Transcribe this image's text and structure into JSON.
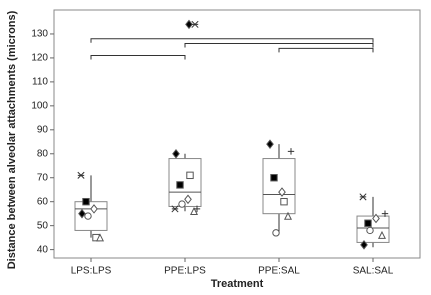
{
  "chart_data": {
    "type": "box",
    "x_label": "Treatment",
    "y_label": "Distance between alveolar attachments (microns)",
    "categories": [
      "LPS:LPS",
      "PPE:LPS",
      "PPE:SAL",
      "SAL:SAL"
    ],
    "ylim": [
      36.5,
      140
    ],
    "yticks": [
      40,
      50,
      60,
      70,
      80,
      90,
      100,
      110,
      120,
      130
    ],
    "boxes": [
      {
        "low": 45,
        "q1": 48,
        "median": 57,
        "q3": 60,
        "high": 71
      },
      {
        "low": 56,
        "q1": 58,
        "median": 64,
        "q3": 78,
        "high": 80
      },
      {
        "low": 47,
        "q1": 55,
        "median": 63,
        "q3": 78,
        "high": 84
      },
      {
        "low": 41,
        "q1": 43,
        "median": 49,
        "q3": 54,
        "high": 62
      }
    ],
    "color": "#888888",
    "points": [
      {
        "marker": "asterisk",
        "values": [
          71,
          57,
          null,
          62
        ]
      },
      {
        "marker": "filled-square",
        "values": [
          60,
          67,
          70,
          51
        ]
      },
      {
        "marker": "filled-diamond",
        "values": [
          55,
          80,
          84,
          42
        ]
      },
      {
        "marker": "open-circle",
        "values": [
          54,
          59,
          47,
          48
        ]
      },
      {
        "marker": "open-diamond",
        "values": [
          57,
          61,
          64,
          53
        ]
      },
      {
        "marker": "open-square",
        "values": [
          45,
          71,
          60,
          null
        ]
      },
      {
        "marker": "open-triangle",
        "values": [
          45,
          56,
          54,
          46
        ]
      },
      {
        "marker": "plus",
        "values": [
          null,
          57,
          81,
          55
        ]
      }
    ],
    "outliers": [
      null,
      134,
      null,
      null
    ],
    "brackets": [
      {
        "from": 0,
        "to": 3,
        "y": 128
      },
      {
        "from": 1,
        "to": 3,
        "y": 126
      },
      {
        "from": 2,
        "to": 3,
        "y": 124
      },
      {
        "from": 0,
        "to": 1,
        "y": 121
      }
    ]
  }
}
